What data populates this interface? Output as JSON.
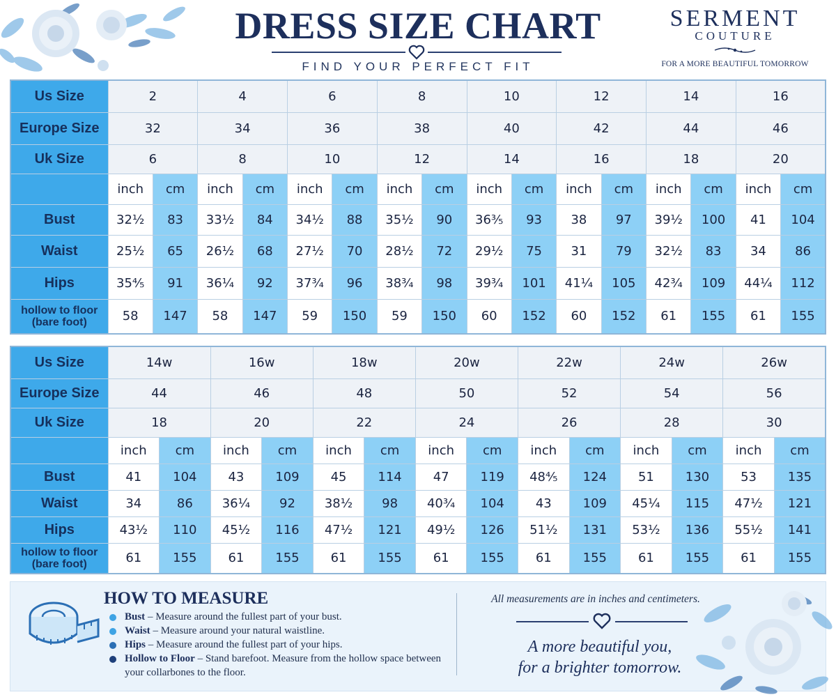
{
  "header": {
    "title": "DRESS SIZE CHART",
    "subtitle": "FIND YOUR PERFECT FIT",
    "brand_name": "SERMENT",
    "brand_sub": "COUTURE",
    "brand_tagline": "FOR A MORE BEAUTIFUL TOMORROW"
  },
  "table1": {
    "row_labels": {
      "us": "Us Size",
      "eu": "Europe Size",
      "uk": "Uk Size",
      "bust": "Bust",
      "waist": "Waist",
      "hips": "Hips",
      "hollow": "hollow to floor\n(bare foot)"
    },
    "unit_inch": "inch",
    "unit_cm": "cm",
    "us": [
      "2",
      "4",
      "6",
      "8",
      "10",
      "12",
      "14",
      "16"
    ],
    "eu": [
      "32",
      "34",
      "36",
      "38",
      "40",
      "42",
      "44",
      "46"
    ],
    "uk": [
      "6",
      "8",
      "10",
      "12",
      "14",
      "16",
      "18",
      "20"
    ],
    "bust": [
      [
        "32½",
        "83"
      ],
      [
        "33½",
        "84"
      ],
      [
        "34½",
        "88"
      ],
      [
        "35½",
        "90"
      ],
      [
        "36⅗",
        "93"
      ],
      [
        "38",
        "97"
      ],
      [
        "39½",
        "100"
      ],
      [
        "41",
        "104"
      ]
    ],
    "waist": [
      [
        "25½",
        "65"
      ],
      [
        "26½",
        "68"
      ],
      [
        "27½",
        "70"
      ],
      [
        "28½",
        "72"
      ],
      [
        "29½",
        "75"
      ],
      [
        "31",
        "79"
      ],
      [
        "32½",
        "83"
      ],
      [
        "34",
        "86"
      ]
    ],
    "hips": [
      [
        "35⅘",
        "91"
      ],
      [
        "36¼",
        "92"
      ],
      [
        "37¾",
        "96"
      ],
      [
        "38¾",
        "98"
      ],
      [
        "39¾",
        "101"
      ],
      [
        "41¼",
        "105"
      ],
      [
        "42¾",
        "109"
      ],
      [
        "44¼",
        "112"
      ]
    ],
    "hollow": [
      [
        "58",
        "147"
      ],
      [
        "58",
        "147"
      ],
      [
        "59",
        "150"
      ],
      [
        "59",
        "150"
      ],
      [
        "60",
        "152"
      ],
      [
        "60",
        "152"
      ],
      [
        "61",
        "155"
      ],
      [
        "61",
        "155"
      ]
    ]
  },
  "table2": {
    "row_labels": {
      "us": "Us Size",
      "eu": "Europe Size",
      "uk": "Uk Size",
      "bust": "Bust",
      "waist": "Waist",
      "hips": "Hips",
      "hollow": "hollow to floor\n(bare foot)"
    },
    "unit_inch": "inch",
    "unit_cm": "cm",
    "us": [
      "14w",
      "16w",
      "18w",
      "20w",
      "22w",
      "24w",
      "26w"
    ],
    "eu": [
      "44",
      "46",
      "48",
      "50",
      "52",
      "54",
      "56"
    ],
    "uk": [
      "18",
      "20",
      "22",
      "24",
      "26",
      "28",
      "30"
    ],
    "bust": [
      [
        "41",
        "104"
      ],
      [
        "43",
        "109"
      ],
      [
        "45",
        "114"
      ],
      [
        "47",
        "119"
      ],
      [
        "48⅘",
        "124"
      ],
      [
        "51",
        "130"
      ],
      [
        "53",
        "135"
      ]
    ],
    "waist": [
      [
        "34",
        "86"
      ],
      [
        "36¼",
        "92"
      ],
      [
        "38½",
        "98"
      ],
      [
        "40¾",
        "104"
      ],
      [
        "43",
        "109"
      ],
      [
        "45¼",
        "115"
      ],
      [
        "47½",
        "121"
      ]
    ],
    "hips": [
      [
        "43½",
        "110"
      ],
      [
        "45½",
        "116"
      ],
      [
        "47½",
        "121"
      ],
      [
        "49½",
        "126"
      ],
      [
        "51½",
        "131"
      ],
      [
        "53½",
        "136"
      ],
      [
        "55½",
        "141"
      ]
    ],
    "hollow": [
      [
        "61",
        "155"
      ],
      [
        "61",
        "155"
      ],
      [
        "61",
        "155"
      ],
      [
        "61",
        "155"
      ],
      [
        "61",
        "155"
      ],
      [
        "61",
        "155"
      ],
      [
        "61",
        "155"
      ]
    ]
  },
  "how_to": {
    "title": "HOW TO MEASURE",
    "items": [
      {
        "term": "Bust",
        "text": " – Measure around the fullest part of your bust.",
        "color": "#3ea3e4"
      },
      {
        "term": "Waist",
        "text": " – Measure around your natural waistline.",
        "color": "#3ea3e4"
      },
      {
        "term": "Hips",
        "text": " – Measure around the fullest part of your hips.",
        "color": "#2b6fb5"
      },
      {
        "term": "Hollow to Floor",
        "text": " – Stand barefoot. Measure from the hollow space between your collarbones to the floor.",
        "color": "#1d3f7a"
      }
    ]
  },
  "footer": {
    "note": "All measurements are in inches and centimeters.",
    "slogan_line1": "A more beautiful you,",
    "slogan_line2": "for a brighter tomorrow."
  },
  "colors": {
    "label_blue": "#3ea9ea",
    "cm_blue": "#8dd0f6",
    "navy": "#1d2f5c"
  }
}
